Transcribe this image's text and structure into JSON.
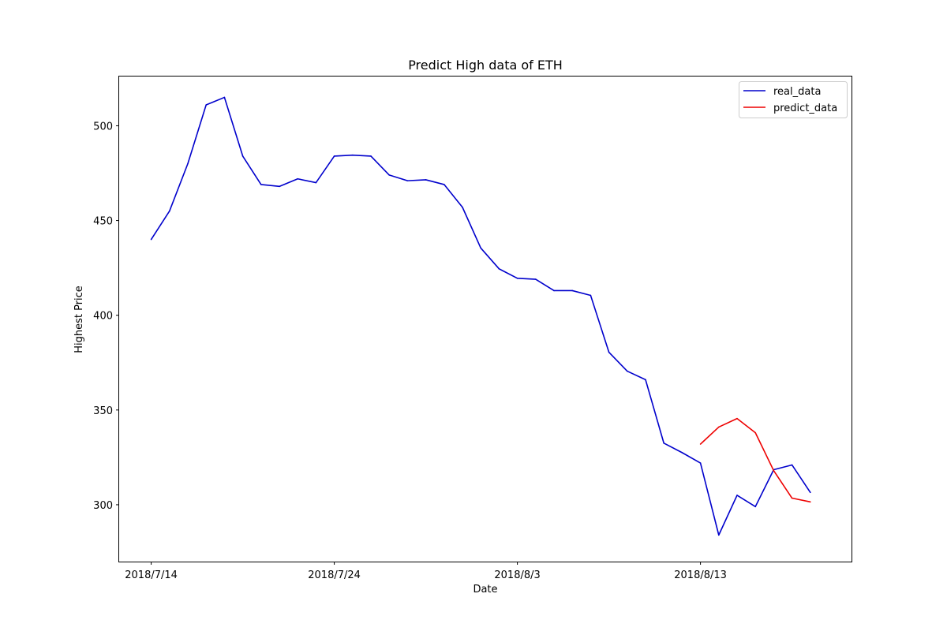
{
  "chart_data": {
    "type": "line",
    "title": "Predict High data of ETH",
    "xlabel": "Date",
    "ylabel": "Highest Price",
    "x": [
      "2018-07-14",
      "2018-07-15",
      "2018-07-16",
      "2018-07-17",
      "2018-07-18",
      "2018-07-19",
      "2018-07-20",
      "2018-07-21",
      "2018-07-22",
      "2018-07-23",
      "2018-07-24",
      "2018-07-25",
      "2018-07-26",
      "2018-07-27",
      "2018-07-28",
      "2018-07-29",
      "2018-07-30",
      "2018-07-31",
      "2018-08-01",
      "2018-08-02",
      "2018-08-03",
      "2018-08-04",
      "2018-08-05",
      "2018-08-06",
      "2018-08-07",
      "2018-08-08",
      "2018-08-09",
      "2018-08-10",
      "2018-08-11",
      "2018-08-12",
      "2018-08-13",
      "2018-08-14",
      "2018-08-15",
      "2018-08-16",
      "2018-08-17",
      "2018-08-18",
      "2018-08-19"
    ],
    "x_ticks": [
      "2018-07-14",
      "2018-07-24",
      "2018-08-03",
      "2018-08-13"
    ],
    "x_tick_labels": [
      "2018/7/14",
      "2018/7/24",
      "2018/8/3",
      "2018/8/13"
    ],
    "y_ticks": [
      300,
      350,
      400,
      450,
      500
    ],
    "xlim": [
      "2018-07-12T06:00",
      "2018-08-21T06:00"
    ],
    "ylim": [
      270,
      526
    ],
    "series": [
      {
        "name": "real_data",
        "color": "#0000cc",
        "x": [
          "2018-07-14",
          "2018-07-15",
          "2018-07-16",
          "2018-07-17",
          "2018-07-18",
          "2018-07-19",
          "2018-07-20",
          "2018-07-21",
          "2018-07-22",
          "2018-07-23",
          "2018-07-24",
          "2018-07-25",
          "2018-07-26",
          "2018-07-27",
          "2018-07-28",
          "2018-07-29",
          "2018-07-30",
          "2018-07-31",
          "2018-08-01",
          "2018-08-02",
          "2018-08-03",
          "2018-08-04",
          "2018-08-05",
          "2018-08-06",
          "2018-08-07",
          "2018-08-08",
          "2018-08-09",
          "2018-08-10",
          "2018-08-11",
          "2018-08-12",
          "2018-08-13",
          "2018-08-14",
          "2018-08-15",
          "2018-08-16",
          "2018-08-17",
          "2018-08-18",
          "2018-08-19"
        ],
        "values": [
          440,
          455,
          480,
          511,
          515,
          484,
          469,
          468,
          472,
          470,
          484,
          484.5,
          484,
          474,
          471,
          471.5,
          469,
          457,
          435.5,
          424.5,
          419.5,
          419,
          413,
          413,
          410.5,
          380.5,
          370.5,
          366,
          332.5,
          327.5,
          322,
          284,
          305,
          299,
          318.5,
          321,
          306.5
        ]
      },
      {
        "name": "predict_data",
        "color": "#ee0000",
        "x": [
          "2018-08-13",
          "2018-08-14",
          "2018-08-15",
          "2018-08-16",
          "2018-08-17",
          "2018-08-18",
          "2018-08-19"
        ],
        "values": [
          332,
          341,
          345.5,
          338,
          318,
          303.5,
          301.5
        ]
      }
    ],
    "grid": false,
    "legend_position": "top-right"
  }
}
